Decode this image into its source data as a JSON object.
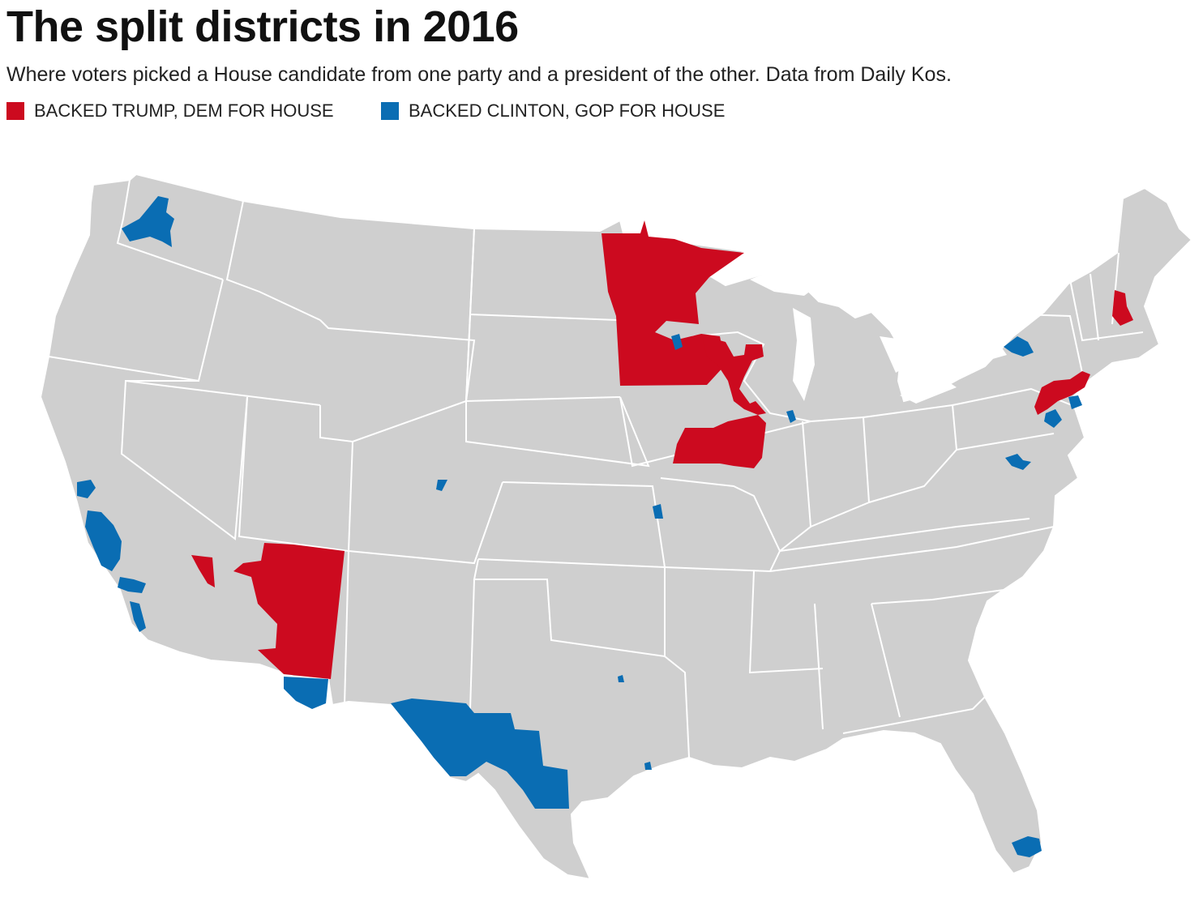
{
  "title": "The split districts in 2016",
  "subtitle": "Where voters picked a House candidate from one party and a president of the other. Data from Daily Kos.",
  "legend": {
    "trump": {
      "label": "BACKED TRUMP, DEM FOR HOUSE",
      "color": "#cc0a1f"
    },
    "clinton": {
      "label": "BACKED CLINTON, GOP FOR HOUSE",
      "color": "#0a6db3"
    }
  },
  "map": {
    "region": "contiguous-united-states",
    "base_color": "#cfcfcf",
    "border_color": "#ffffff",
    "highlighted_areas": [
      {
        "name": "minnesota-districts",
        "category": "trump"
      },
      {
        "name": "iowa-wisconsin-districts",
        "category": "trump"
      },
      {
        "name": "iowa-illinois-districts",
        "category": "trump"
      },
      {
        "name": "arizona-north-district",
        "category": "trump"
      },
      {
        "name": "nevada-south-district",
        "category": "trump"
      },
      {
        "name": "new-hampshire-district",
        "category": "trump"
      },
      {
        "name": "pennsylvania-new-jersey-districts",
        "category": "trump"
      },
      {
        "name": "washington-district",
        "category": "clinton"
      },
      {
        "name": "california-districts",
        "category": "clinton"
      },
      {
        "name": "arizona-south-district",
        "category": "clinton"
      },
      {
        "name": "texas-border-district",
        "category": "clinton"
      },
      {
        "name": "new-york-district",
        "category": "clinton"
      },
      {
        "name": "florida-district",
        "category": "clinton"
      },
      {
        "name": "colorado-district",
        "category": "clinton"
      },
      {
        "name": "kansas-district",
        "category": "clinton"
      },
      {
        "name": "illinois-suburb-district",
        "category": "clinton"
      },
      {
        "name": "virginia-district",
        "category": "clinton"
      },
      {
        "name": "new-jersey-pennsylvania-districts",
        "category": "clinton"
      },
      {
        "name": "minnesota-suburb-district",
        "category": "clinton"
      }
    ]
  }
}
